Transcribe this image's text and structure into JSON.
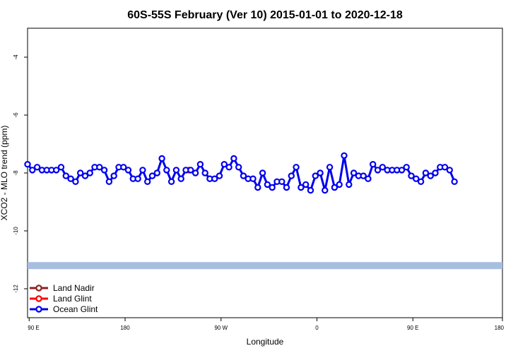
{
  "chart_data": {
    "type": "line",
    "title": "60S-55S February (Ver 10)   2015-01-01 to 2020-12-18",
    "xlabel": "Longitude",
    "ylabel": "XCO2 - MLO trend (ppm)",
    "xlim": [
      -117,
      180
    ],
    "ylim": [
      -13,
      -3
    ],
    "x_ticks": [
      {
        "value": -116,
        "label": "90 E"
      },
      {
        "value": -56,
        "label": "180"
      },
      {
        "value": 4,
        "label": "90 W"
      },
      {
        "value": 64,
        "label": "0"
      },
      {
        "value": 124,
        "label": "90 E"
      },
      {
        "value": 180,
        "label": "180"
      }
    ],
    "y_ticks": [
      {
        "value": -4,
        "label": "-4"
      },
      {
        "value": -6,
        "label": "-6"
      },
      {
        "value": -8,
        "label": "-8"
      },
      {
        "value": -10,
        "label": "-10"
      },
      {
        "value": -12,
        "label": "-12"
      }
    ],
    "grid": false,
    "legend_position": "bottom-left",
    "band": {
      "y": -11.2,
      "color": "#a8bedf"
    },
    "series": [
      {
        "name": "Land Nadir",
        "color": "#8b2323",
        "points": []
      },
      {
        "name": "Land Glint",
        "color": "#ff0000",
        "points": [
          [
            -16,
            -7.9
          ]
        ]
      },
      {
        "name": "Ocean Glint",
        "color": "#0000ee",
        "points": [
          [
            -117,
            -7.7
          ],
          [
            -114,
            -7.9
          ],
          [
            -111,
            -7.8
          ],
          [
            -108,
            -7.9
          ],
          [
            -105,
            -7.9
          ],
          [
            -102,
            -7.9
          ],
          [
            -99,
            -7.9
          ],
          [
            -96,
            -7.8
          ],
          [
            -93,
            -8.1
          ],
          [
            -90,
            -8.2
          ],
          [
            -87,
            -8.3
          ],
          [
            -84,
            -8.0
          ],
          [
            -81,
            -8.1
          ],
          [
            -78,
            -8.0
          ],
          [
            -75,
            -7.8
          ],
          [
            -72,
            -7.8
          ],
          [
            -69,
            -7.9
          ],
          [
            -66,
            -8.3
          ],
          [
            -63,
            -8.1
          ],
          [
            -60,
            -7.8
          ],
          [
            -57,
            -7.8
          ],
          [
            -54,
            -7.9
          ],
          [
            -51,
            -8.2
          ],
          [
            -48,
            -8.2
          ],
          [
            -45,
            -7.9
          ],
          [
            -42,
            -8.3
          ],
          [
            -39,
            -8.1
          ],
          [
            -36,
            -8.0
          ],
          [
            -33,
            -7.5
          ],
          [
            -30,
            -7.9
          ],
          [
            -27,
            -8.3
          ],
          [
            -24,
            -7.9
          ],
          [
            -21,
            -8.2
          ],
          [
            -18,
            -7.9
          ],
          [
            -15,
            -7.9
          ],
          [
            -12,
            -8.0
          ],
          [
            -9,
            -7.7
          ],
          [
            -6,
            -8.0
          ],
          [
            -3,
            -8.2
          ],
          [
            0,
            -8.2
          ],
          [
            3,
            -8.1
          ],
          [
            6,
            -7.7
          ],
          [
            9,
            -7.8
          ],
          [
            12,
            -7.5
          ],
          [
            15,
            -7.8
          ],
          [
            18,
            -8.1
          ],
          [
            21,
            -8.2
          ],
          [
            24,
            -8.2
          ],
          [
            27,
            -8.5
          ],
          [
            30,
            -8.0
          ],
          [
            33,
            -8.4
          ],
          [
            36,
            -8.5
          ],
          [
            39,
            -8.3
          ],
          [
            42,
            -8.3
          ],
          [
            45,
            -8.5
          ],
          [
            48,
            -8.1
          ],
          [
            51,
            -7.8
          ],
          [
            54,
            -8.5
          ],
          [
            57,
            -8.4
          ],
          [
            60,
            -8.6
          ],
          [
            63,
            -8.1
          ],
          [
            66,
            -8.0
          ],
          [
            69,
            -8.6
          ],
          [
            72,
            -7.8
          ],
          [
            75,
            -8.5
          ],
          [
            78,
            -8.4
          ],
          [
            81,
            -7.4
          ],
          [
            84,
            -8.4
          ],
          [
            87,
            -8.0
          ],
          [
            90,
            -8.1
          ],
          [
            93,
            -8.1
          ],
          [
            96,
            -8.2
          ],
          [
            99,
            -7.7
          ],
          [
            102,
            -7.9
          ],
          [
            105,
            -7.8
          ],
          [
            108,
            -7.9
          ],
          [
            111,
            -7.9
          ],
          [
            114,
            -7.9
          ],
          [
            117,
            -7.9
          ],
          [
            120,
            -7.8
          ],
          [
            123,
            -8.1
          ],
          [
            126,
            -8.2
          ],
          [
            129,
            -8.3
          ],
          [
            132,
            -8.0
          ],
          [
            135,
            -8.1
          ],
          [
            138,
            -8.0
          ],
          [
            141,
            -7.8
          ],
          [
            144,
            -7.8
          ],
          [
            147,
            -7.9
          ],
          [
            150,
            -8.3
          ]
        ]
      }
    ]
  }
}
